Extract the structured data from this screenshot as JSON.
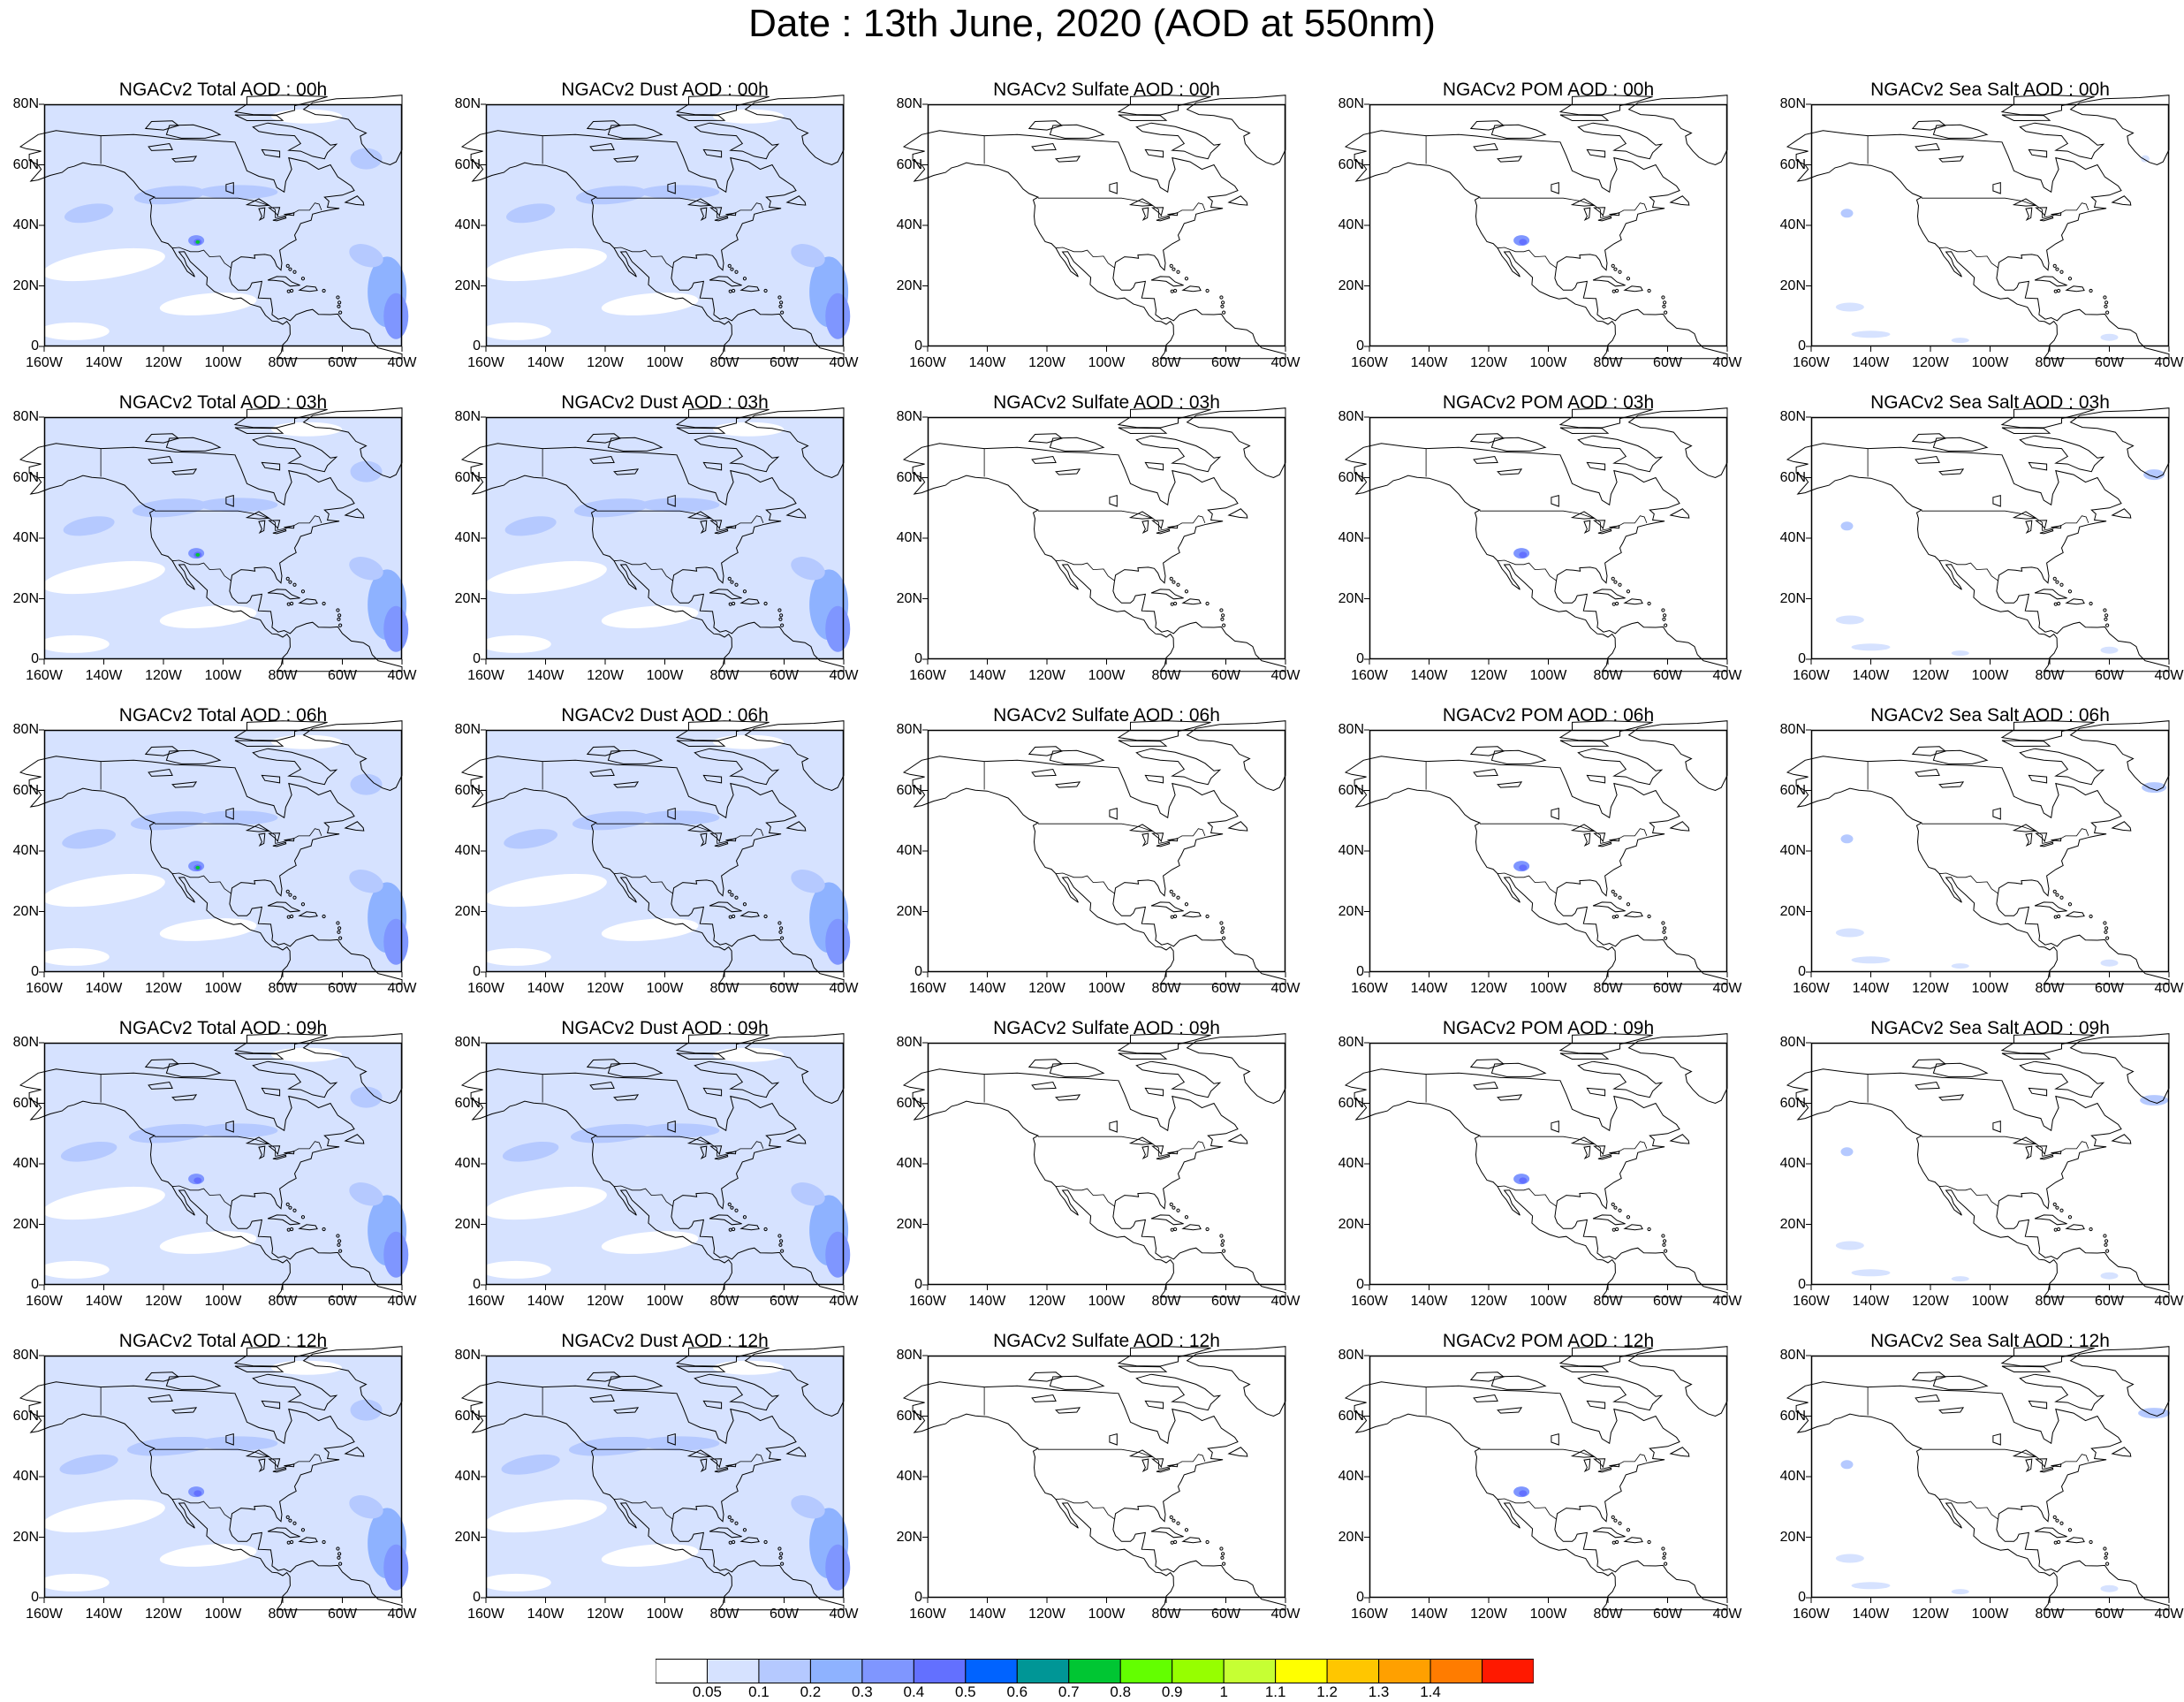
{
  "title": "Date : 13th June, 2020 (AOD at 550nm)",
  "panel_titles": [
    [
      "NGACv2 Total AOD : 00h",
      "NGACv2 Dust AOD : 00h",
      "NGACv2 Sulfate AOD : 00h",
      "NGACv2 POM AOD : 00h",
      "NGACv2 Sea Salt AOD : 00h"
    ],
    [
      "NGACv2 Total AOD : 03h",
      "NGACv2 Dust AOD : 03h",
      "NGACv2 Sulfate AOD : 03h",
      "NGACv2 POM AOD : 03h",
      "NGACv2 Sea Salt AOD : 03h"
    ],
    [
      "NGACv2 Total AOD : 06h",
      "NGACv2 Dust AOD : 06h",
      "NGACv2 Sulfate AOD : 06h",
      "NGACv2 POM AOD : 06h",
      "NGACv2 Sea Salt AOD : 06h"
    ],
    [
      "NGACv2 Total AOD : 09h",
      "NGACv2 Dust AOD : 09h",
      "NGACv2 Sulfate AOD : 09h",
      "NGACv2 POM AOD : 09h",
      "NGACv2 Sea Salt  AOD : 09h"
    ],
    [
      "NGACv2 Total AOD  : 12h",
      "NGACv2 Dust AOD : 12h",
      "NGACv2 Sulfate AOD : 12h",
      "NGACv2 POM  AOD : 12h",
      "NGACv2 Sea Salt  AOD : 12h"
    ]
  ],
  "lat_ticks": [
    "0",
    "20N",
    "40N",
    "60N",
    "80N"
  ],
  "lon_ticks": [
    "160W",
    "140W",
    "120W",
    "100W",
    "80W",
    "60W",
    "40W"
  ],
  "map_extent": {
    "lon": [
      -160,
      -40
    ],
    "lat": [
      0,
      80
    ]
  },
  "colorbar": {
    "colors": [
      "#ffffff",
      "#d6e2ff",
      "#b5c9ff",
      "#8eb2ff",
      "#7f96ff",
      "#6370ff",
      "#0063ff",
      "#009696",
      "#00c633",
      "#63ff00",
      "#96ff00",
      "#c6ff33",
      "#ffff00",
      "#ffc600",
      "#ffa000",
      "#ff7c00",
      "#ff1900"
    ],
    "labels": [
      "0.05",
      "0.1",
      "0.2",
      "0.3",
      "0.4",
      "0.5",
      "0.6",
      "0.7",
      "0.8",
      "0.9",
      "1",
      "1.1",
      "1.2",
      "1.3",
      "1.4"
    ]
  },
  "fields": {
    "total": {
      "background_level": 1,
      "features": [
        "pacific_band",
        "arctic_haze",
        "atlantic_plume",
        "sw_us_hotspot"
      ]
    },
    "dust": {
      "background_level": 1,
      "features": [
        "pacific_band",
        "atlantic_plume"
      ]
    },
    "sulfate": {
      "background_level": 0,
      "features": []
    },
    "pom": {
      "background_level": 0,
      "features": [
        "sw_us_hotspot"
      ]
    },
    "seasalt": {
      "background_level": 0,
      "features": [
        "pacific_spot",
        "labrador_sea",
        "tropical_patches"
      ]
    }
  }
}
